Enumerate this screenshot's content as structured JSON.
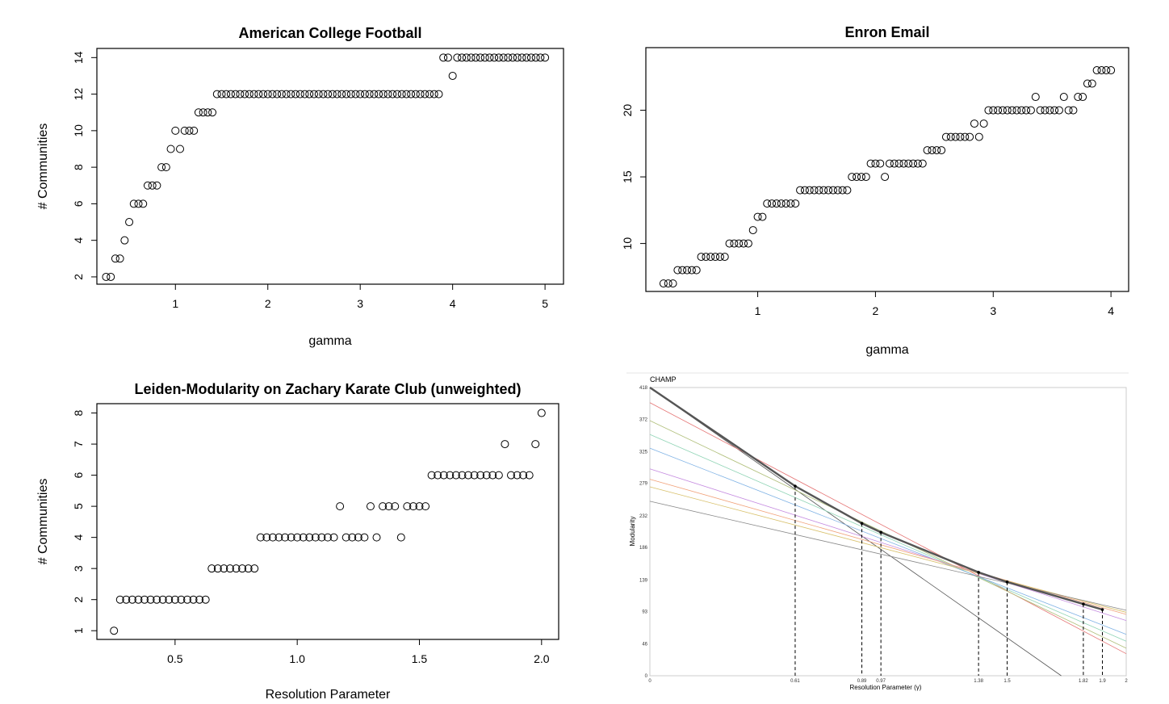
{
  "chart_data": [
    {
      "id": "football",
      "type": "scatter",
      "title": "American College Football",
      "xlabel": "gamma",
      "ylabel": "# Communities",
      "xlim": [
        0.15,
        5.2
      ],
      "ylim": [
        1.6,
        14.5
      ],
      "xticks": [
        "1",
        "2",
        "3",
        "4",
        "5"
      ],
      "xtick_values": [
        1,
        2,
        3,
        4,
        5
      ],
      "yticks": [
        "2",
        "4",
        "6",
        "8",
        "10",
        "12",
        "14"
      ],
      "ytick_values": [
        2,
        4,
        6,
        8,
        10,
        12,
        14
      ],
      "points": [
        [
          0.25,
          2
        ],
        [
          0.3,
          2
        ],
        [
          0.35,
          3
        ],
        [
          0.4,
          3
        ],
        [
          0.45,
          4
        ],
        [
          0.5,
          5
        ],
        [
          0.55,
          6
        ],
        [
          0.6,
          6
        ],
        [
          0.65,
          6
        ],
        [
          0.7,
          7
        ],
        [
          0.75,
          7
        ],
        [
          0.8,
          7
        ],
        [
          0.85,
          8
        ],
        [
          0.9,
          8
        ],
        [
          0.95,
          9
        ],
        [
          1.0,
          10
        ],
        [
          1.05,
          9
        ],
        [
          1.1,
          10
        ],
        [
          1.15,
          10
        ],
        [
          1.2,
          10
        ],
        [
          1.25,
          11
        ],
        [
          1.3,
          11
        ],
        [
          1.35,
          11
        ],
        [
          1.4,
          11
        ],
        [
          1.45,
          12
        ],
        [
          1.5,
          12
        ],
        [
          1.55,
          12
        ],
        [
          1.6,
          12
        ],
        [
          1.65,
          12
        ],
        [
          1.7,
          12
        ],
        [
          1.75,
          12
        ],
        [
          1.8,
          12
        ],
        [
          1.85,
          12
        ],
        [
          1.9,
          12
        ],
        [
          1.95,
          12
        ],
        [
          2.0,
          12
        ],
        [
          2.05,
          12
        ],
        [
          2.1,
          12
        ],
        [
          2.15,
          12
        ],
        [
          2.2,
          12
        ],
        [
          2.25,
          12
        ],
        [
          2.3,
          12
        ],
        [
          2.35,
          12
        ],
        [
          2.4,
          12
        ],
        [
          2.45,
          12
        ],
        [
          2.5,
          12
        ],
        [
          2.55,
          12
        ],
        [
          2.6,
          12
        ],
        [
          2.65,
          12
        ],
        [
          2.7,
          12
        ],
        [
          2.75,
          12
        ],
        [
          2.8,
          12
        ],
        [
          2.85,
          12
        ],
        [
          2.9,
          12
        ],
        [
          2.95,
          12
        ],
        [
          3.0,
          12
        ],
        [
          3.05,
          12
        ],
        [
          3.1,
          12
        ],
        [
          3.15,
          12
        ],
        [
          3.2,
          12
        ],
        [
          3.25,
          12
        ],
        [
          3.3,
          12
        ],
        [
          3.35,
          12
        ],
        [
          3.4,
          12
        ],
        [
          3.45,
          12
        ],
        [
          3.5,
          12
        ],
        [
          3.55,
          12
        ],
        [
          3.6,
          12
        ],
        [
          3.65,
          12
        ],
        [
          3.7,
          12
        ],
        [
          3.75,
          12
        ],
        [
          3.8,
          12
        ],
        [
          3.85,
          12
        ],
        [
          3.9,
          14
        ],
        [
          3.95,
          14
        ],
        [
          4.0,
          13
        ],
        [
          4.05,
          14
        ],
        [
          4.1,
          14
        ],
        [
          4.15,
          14
        ],
        [
          4.2,
          14
        ],
        [
          4.25,
          14
        ],
        [
          4.3,
          14
        ],
        [
          4.35,
          14
        ],
        [
          4.4,
          14
        ],
        [
          4.45,
          14
        ],
        [
          4.5,
          14
        ],
        [
          4.55,
          14
        ],
        [
          4.6,
          14
        ],
        [
          4.65,
          14
        ],
        [
          4.7,
          14
        ],
        [
          4.75,
          14
        ],
        [
          4.8,
          14
        ],
        [
          4.85,
          14
        ],
        [
          4.9,
          14
        ],
        [
          4.95,
          14
        ],
        [
          5.0,
          14
        ]
      ]
    },
    {
      "id": "enron",
      "type": "scatter",
      "title": "Enron Email",
      "xlabel": "gamma",
      "ylabel": "",
      "xlim": [
        0.05,
        4.15
      ],
      "ylim": [
        6.4,
        24.7
      ],
      "xticks": [
        "1",
        "2",
        "3",
        "4"
      ],
      "xtick_values": [
        1,
        2,
        3,
        4
      ],
      "yticks": [
        "10",
        "15",
        "20"
      ],
      "ytick_values": [
        10,
        15,
        20
      ],
      "points": [
        [
          0.2,
          7
        ],
        [
          0.24,
          7
        ],
        [
          0.28,
          7
        ],
        [
          0.32,
          8
        ],
        [
          0.36,
          8
        ],
        [
          0.4,
          8
        ],
        [
          0.44,
          8
        ],
        [
          0.48,
          8
        ],
        [
          0.52,
          9
        ],
        [
          0.56,
          9
        ],
        [
          0.6,
          9
        ],
        [
          0.64,
          9
        ],
        [
          0.68,
          9
        ],
        [
          0.72,
          9
        ],
        [
          0.76,
          10
        ],
        [
          0.8,
          10
        ],
        [
          0.84,
          10
        ],
        [
          0.88,
          10
        ],
        [
          0.92,
          10
        ],
        [
          0.96,
          11
        ],
        [
          1.0,
          12
        ],
        [
          1.04,
          12
        ],
        [
          1.08,
          13
        ],
        [
          1.12,
          13
        ],
        [
          1.16,
          13
        ],
        [
          1.2,
          13
        ],
        [
          1.24,
          13
        ],
        [
          1.28,
          13
        ],
        [
          1.32,
          13
        ],
        [
          1.36,
          14
        ],
        [
          1.4,
          14
        ],
        [
          1.44,
          14
        ],
        [
          1.48,
          14
        ],
        [
          1.52,
          14
        ],
        [
          1.56,
          14
        ],
        [
          1.6,
          14
        ],
        [
          1.64,
          14
        ],
        [
          1.68,
          14
        ],
        [
          1.72,
          14
        ],
        [
          1.76,
          14
        ],
        [
          1.8,
          15
        ],
        [
          1.84,
          15
        ],
        [
          1.88,
          15
        ],
        [
          1.92,
          15
        ],
        [
          1.96,
          16
        ],
        [
          2.0,
          16
        ],
        [
          2.04,
          16
        ],
        [
          2.08,
          15
        ],
        [
          2.12,
          16
        ],
        [
          2.16,
          16
        ],
        [
          2.2,
          16
        ],
        [
          2.24,
          16
        ],
        [
          2.28,
          16
        ],
        [
          2.32,
          16
        ],
        [
          2.36,
          16
        ],
        [
          2.4,
          16
        ],
        [
          2.44,
          17
        ],
        [
          2.48,
          17
        ],
        [
          2.52,
          17
        ],
        [
          2.56,
          17
        ],
        [
          2.6,
          18
        ],
        [
          2.64,
          18
        ],
        [
          2.68,
          18
        ],
        [
          2.72,
          18
        ],
        [
          2.76,
          18
        ],
        [
          2.8,
          18
        ],
        [
          2.84,
          19
        ],
        [
          2.88,
          18
        ],
        [
          2.92,
          19
        ],
        [
          2.96,
          20
        ],
        [
          3.0,
          20
        ],
        [
          3.04,
          20
        ],
        [
          3.08,
          20
        ],
        [
          3.12,
          20
        ],
        [
          3.16,
          20
        ],
        [
          3.2,
          20
        ],
        [
          3.24,
          20
        ],
        [
          3.28,
          20
        ],
        [
          3.32,
          20
        ],
        [
          3.36,
          21
        ],
        [
          3.4,
          20
        ],
        [
          3.44,
          20
        ],
        [
          3.48,
          20
        ],
        [
          3.52,
          20
        ],
        [
          3.56,
          20
        ],
        [
          3.6,
          21
        ],
        [
          3.64,
          20
        ],
        [
          3.68,
          20
        ],
        [
          3.72,
          21
        ],
        [
          3.76,
          21
        ],
        [
          3.8,
          22
        ],
        [
          3.84,
          22
        ],
        [
          3.88,
          23
        ],
        [
          3.92,
          23
        ],
        [
          3.96,
          23
        ],
        [
          4.0,
          23
        ]
      ]
    },
    {
      "id": "karate",
      "type": "scatter",
      "title": "Leiden-Modularity on Zachary Karate Club (unweighted)",
      "xlabel": "Resolution Parameter",
      "ylabel": "# Communities",
      "xlim": [
        0.18,
        2.07
      ],
      "ylim": [
        0.72,
        8.3
      ],
      "xticks": [
        "0.5",
        "1.0",
        "1.5",
        "2.0"
      ],
      "xtick_values": [
        0.5,
        1.0,
        1.5,
        2.0
      ],
      "yticks": [
        "1",
        "2",
        "3",
        "4",
        "5",
        "6",
        "7",
        "8"
      ],
      "ytick_values": [
        1,
        2,
        3,
        4,
        5,
        6,
        7,
        8
      ],
      "points": [
        [
          0.25,
          1
        ],
        [
          0.275,
          2
        ],
        [
          0.3,
          2
        ],
        [
          0.325,
          2
        ],
        [
          0.35,
          2
        ],
        [
          0.375,
          2
        ],
        [
          0.4,
          2
        ],
        [
          0.425,
          2
        ],
        [
          0.45,
          2
        ],
        [
          0.475,
          2
        ],
        [
          0.5,
          2
        ],
        [
          0.525,
          2
        ],
        [
          0.55,
          2
        ],
        [
          0.575,
          2
        ],
        [
          0.6,
          2
        ],
        [
          0.625,
          2
        ],
        [
          0.65,
          3
        ],
        [
          0.675,
          3
        ],
        [
          0.7,
          3
        ],
        [
          0.725,
          3
        ],
        [
          0.75,
          3
        ],
        [
          0.775,
          3
        ],
        [
          0.8,
          3
        ],
        [
          0.825,
          3
        ],
        [
          0.85,
          4
        ],
        [
          0.875,
          4
        ],
        [
          0.9,
          4
        ],
        [
          0.925,
          4
        ],
        [
          0.95,
          4
        ],
        [
          0.975,
          4
        ],
        [
          1.0,
          4
        ],
        [
          1.025,
          4
        ],
        [
          1.05,
          4
        ],
        [
          1.075,
          4
        ],
        [
          1.1,
          4
        ],
        [
          1.125,
          4
        ],
        [
          1.15,
          4
        ],
        [
          1.175,
          5
        ],
        [
          1.2,
          4
        ],
        [
          1.225,
          4
        ],
        [
          1.25,
          4
        ],
        [
          1.275,
          4
        ],
        [
          1.3,
          5
        ],
        [
          1.325,
          4
        ],
        [
          1.35,
          5
        ],
        [
          1.375,
          5
        ],
        [
          1.4,
          5
        ],
        [
          1.425,
          4
        ],
        [
          1.45,
          5
        ],
        [
          1.475,
          5
        ],
        [
          1.5,
          5
        ],
        [
          1.525,
          5
        ],
        [
          1.55,
          6
        ],
        [
          1.575,
          6
        ],
        [
          1.6,
          6
        ],
        [
          1.625,
          6
        ],
        [
          1.65,
          6
        ],
        [
          1.675,
          6
        ],
        [
          1.7,
          6
        ],
        [
          1.725,
          6
        ],
        [
          1.75,
          6
        ],
        [
          1.775,
          6
        ],
        [
          1.8,
          6
        ],
        [
          1.825,
          6
        ],
        [
          1.85,
          7
        ],
        [
          1.875,
          6
        ],
        [
          1.9,
          6
        ],
        [
          1.925,
          6
        ],
        [
          1.95,
          6
        ],
        [
          1.975,
          7
        ],
        [
          2.0,
          8
        ]
      ]
    },
    {
      "id": "champ",
      "type": "line",
      "title": "CHAMP",
      "xlabel": "Resolution Parameter (γ)",
      "ylabel": "Modularity",
      "xlim": [
        0,
        2
      ],
      "ylim": [
        0,
        418
      ],
      "yticks": [
        "0",
        "46",
        "93",
        "139",
        "186",
        "232",
        "279",
        "325",
        "372",
        "418"
      ],
      "ytick_values": [
        0,
        46,
        93,
        139,
        186,
        232,
        279,
        325,
        372,
        418
      ],
      "xticks": [
        "0",
        "0.61",
        "0.89",
        "0.97",
        "1.38",
        "1.5",
        "1.82",
        "1.9",
        "2"
      ],
      "xtick_values": [
        0,
        0.61,
        0.89,
        0.97,
        1.38,
        1.5,
        1.82,
        1.9,
        2
      ],
      "breakpoints": [
        0.61,
        0.89,
        0.97,
        1.38,
        1.5,
        1.82,
        1.9
      ],
      "lines": [
        {
          "intercept": 418,
          "slope": -242,
          "color": "#555555"
        },
        {
          "intercept": 396,
          "slope": -182,
          "color": "#e57373"
        },
        {
          "intercept": 370,
          "slope": -165,
          "color": "#b0bf7a"
        },
        {
          "intercept": 350,
          "slope": -150,
          "color": "#8fd4b5"
        },
        {
          "intercept": 330,
          "slope": -135,
          "color": "#7fb2e5"
        },
        {
          "intercept": 300,
          "slope": -110,
          "color": "#c58be0"
        },
        {
          "intercept": 285,
          "slope": -98,
          "color": "#f1a27a"
        },
        {
          "intercept": 274,
          "slope": -91,
          "color": "#d8c06a"
        },
        {
          "intercept": 253,
          "slope": -79,
          "color": "#888888"
        }
      ],
      "envelope": [
        [
          0,
          418
        ],
        [
          0.61,
          275
        ],
        [
          0.89,
          221
        ],
        [
          0.97,
          208
        ],
        [
          1.38,
          150
        ],
        [
          1.5,
          136
        ],
        [
          1.82,
          104
        ],
        [
          1.9,
          96
        ]
      ]
    }
  ]
}
